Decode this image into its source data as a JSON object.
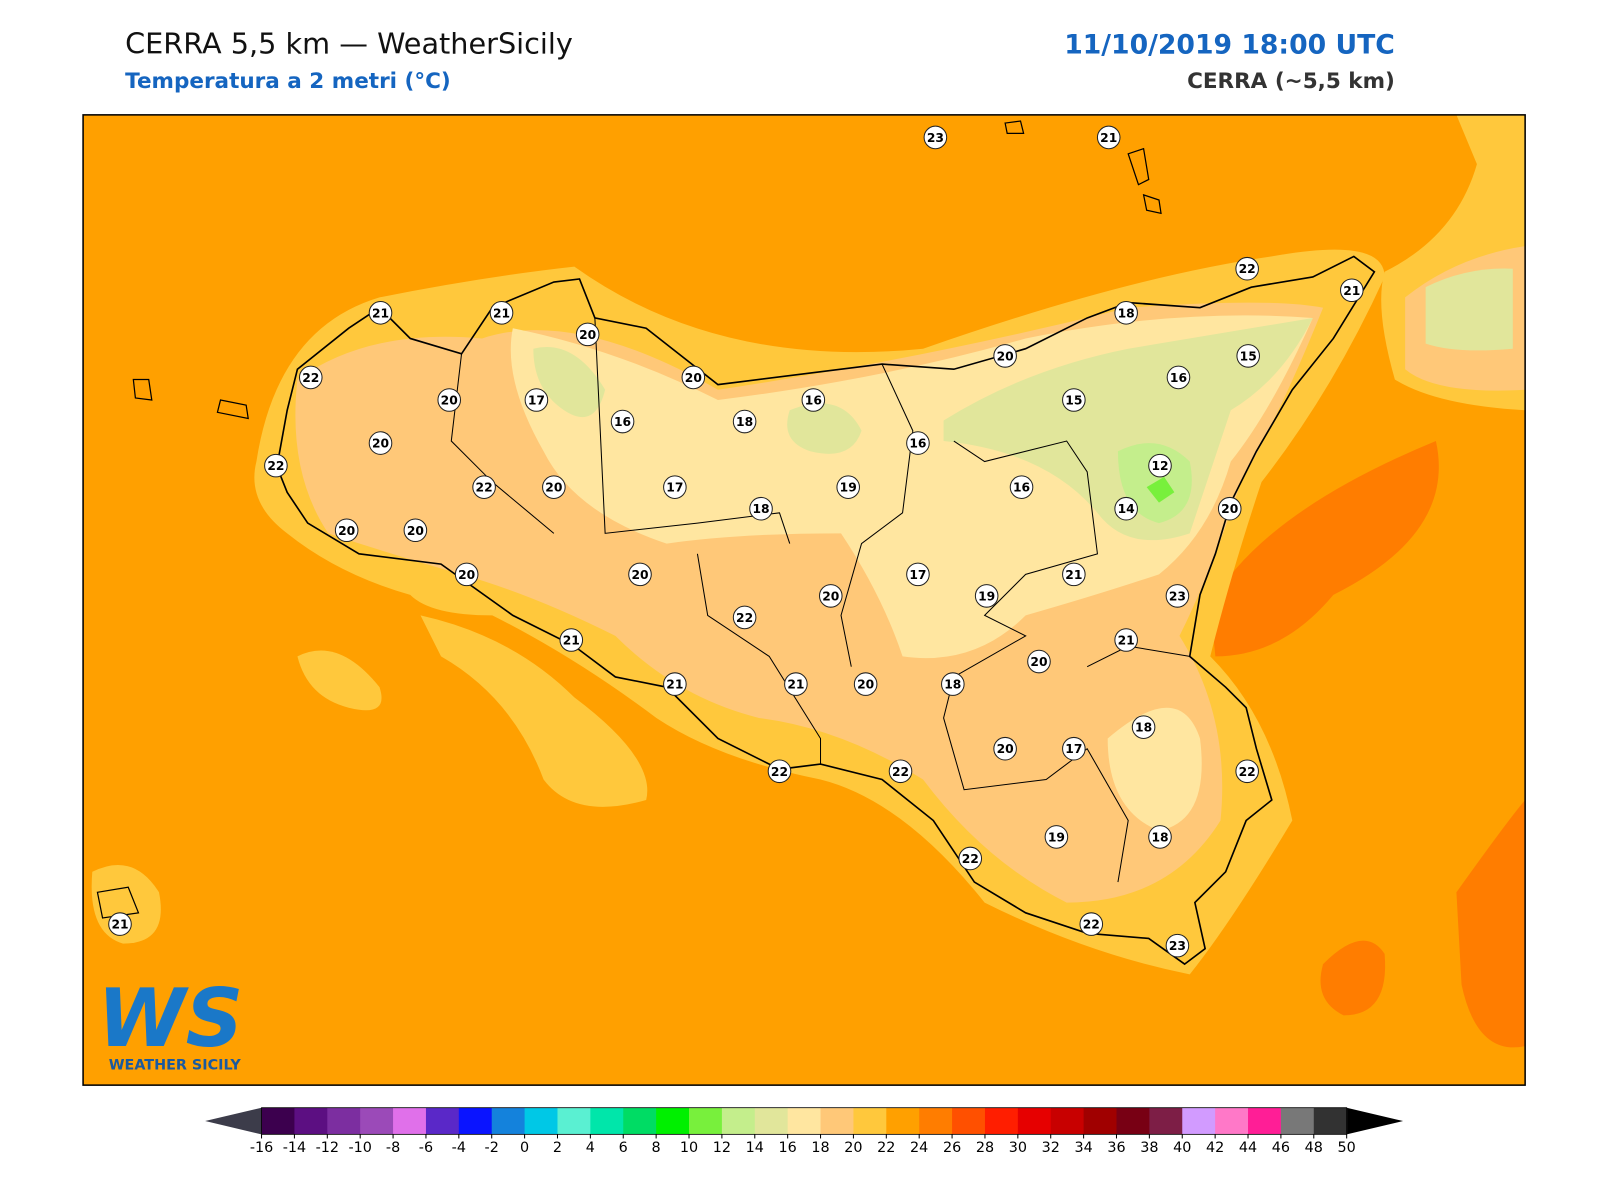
{
  "header": {
    "title": "CERRA 5,5 km — WeatherSicily",
    "subtitle": "Temperatura a 2 metri (°C)",
    "date": "11/10/2019 18:00 UTC",
    "model": "CERRA (~5,5 km)"
  },
  "stations": [
    23,
    21,
    22,
    21,
    21,
    21,
    20,
    18,
    15,
    20,
    22,
    20,
    16,
    20,
    17,
    16,
    15,
    16,
    18,
    16,
    20,
    22,
    12,
    22,
    20,
    17,
    19,
    16,
    18,
    14,
    20,
    20,
    20,
    20,
    20,
    17,
    21,
    20,
    19,
    23,
    22,
    21,
    21,
    20,
    21,
    21,
    20,
    18,
    18,
    20,
    17,
    22,
    22,
    22,
    19,
    18,
    22,
    21,
    22,
    23
  ],
  "colorbar": {
    "ticks": [
      -16,
      -14,
      -12,
      -10,
      -8,
      -6,
      -4,
      -2,
      0,
      2,
      4,
      6,
      8,
      10,
      12,
      14,
      16,
      18,
      20,
      22,
      24,
      26,
      28,
      30,
      32,
      34,
      36,
      38,
      40,
      42,
      44,
      46,
      48,
      50
    ],
    "colors": [
      "#3c004e",
      "#5c0f82",
      "#7c2ea0",
      "#9b4ab8",
      "#e070ea",
      "#5a28c8",
      "#0a14ff",
      "#1482dc",
      "#00c8e6",
      "#5af0d2",
      "#00e6aa",
      "#00dc64",
      "#00f000",
      "#78f03c",
      "#c4ee8c",
      "#e1e69b",
      "#ffe6a0",
      "#ffc878",
      "#ffc83c",
      "#ffa000",
      "#ff7d00",
      "#ff5000",
      "#ff1e00",
      "#e60000",
      "#c80000",
      "#a00000",
      "#780014",
      "#7d1e46",
      "#d29bff",
      "#ff78c8",
      "#ff1e96",
      "#787878",
      "#323232"
    ],
    "under_color": "#3c3c4a",
    "over_color": "#000000"
  },
  "logo": {
    "mark": "WS",
    "name": "WEATHER SICILY"
  }
}
